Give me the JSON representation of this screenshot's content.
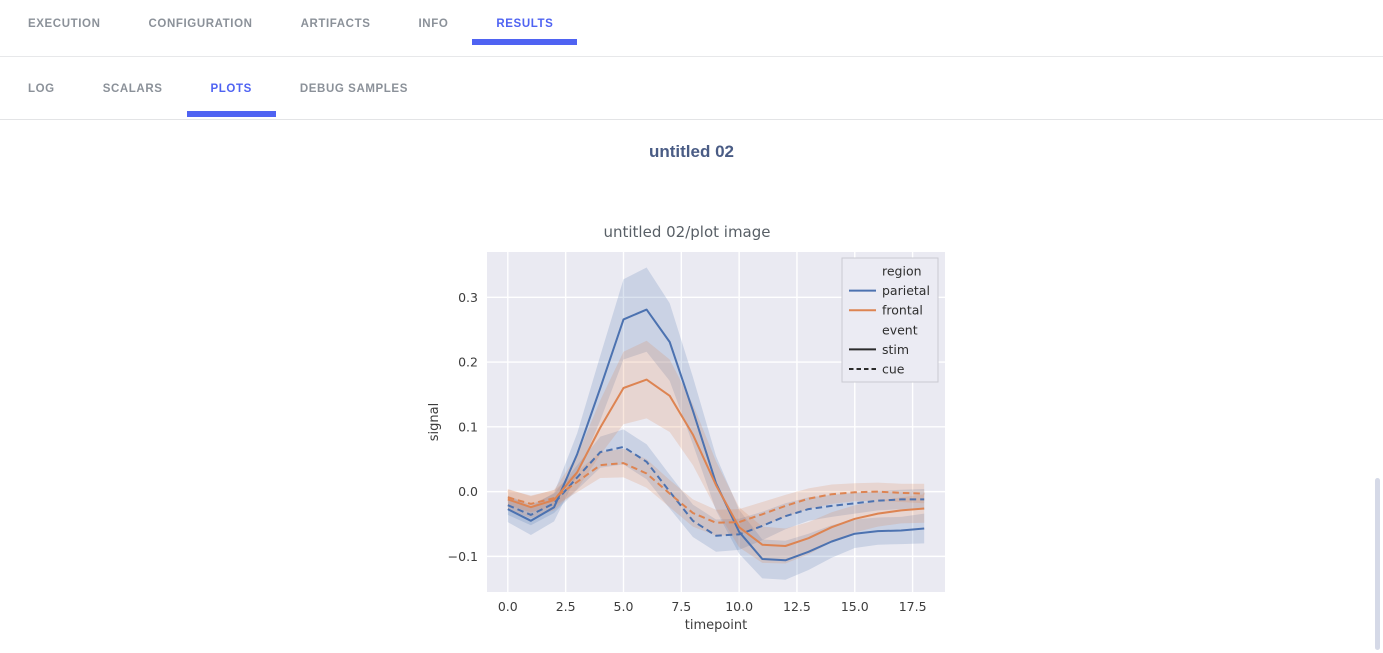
{
  "page": {
    "title": "untitled 02"
  },
  "primary_tabs": {
    "items": [
      {
        "label": "EXECUTION",
        "active": false
      },
      {
        "label": "CONFIGURATION",
        "active": false
      },
      {
        "label": "ARTIFACTS",
        "active": false
      },
      {
        "label": "INFO",
        "active": false
      },
      {
        "label": "RESULTS",
        "active": true
      }
    ]
  },
  "secondary_tabs": {
    "items": [
      {
        "label": "LOG",
        "active": false
      },
      {
        "label": "SCALARS",
        "active": false
      },
      {
        "label": "PLOTS",
        "active": true
      },
      {
        "label": "DEBUG SAMPLES",
        "active": false
      }
    ]
  },
  "colors": {
    "accent": "#4f63f2",
    "inactive_tab": "#8b9199",
    "page_title": "#4a5c85",
    "plot_title": "#585f66",
    "plot_background": "#eaeaf2",
    "grid": "#ffffff",
    "parietal": "#4c72b0",
    "frontal": "#dd8452",
    "legend_line_dark": "#2b2b2b",
    "tick_text": "#3d3d3d",
    "scrollbar": "#d5d9e7"
  },
  "chart_data": {
    "type": "line",
    "title": "untitled 02/plot image",
    "xlabel": "timepoint",
    "ylabel": "signal",
    "x": [
      0,
      1,
      2,
      3,
      4,
      5,
      6,
      7,
      8,
      9,
      10,
      11,
      12,
      13,
      14,
      15,
      16,
      17,
      18
    ],
    "xlim": [
      -0.9,
      18.9
    ],
    "ylim": [
      -0.155,
      0.37
    ],
    "xticks": [
      0,
      2.5,
      5,
      7.5,
      10,
      12.5,
      15,
      17.5
    ],
    "yticks": [
      -0.1,
      0,
      0.1,
      0.2,
      0.3
    ],
    "grid": true,
    "background": "#eaeaf2",
    "legend": {
      "position": "upper-right",
      "entries": [
        {
          "label": "region",
          "type": "header"
        },
        {
          "label": "parietal",
          "type": "line",
          "color": "#4c72b0",
          "dash": "solid"
        },
        {
          "label": "frontal",
          "type": "line",
          "color": "#dd8452",
          "dash": "solid"
        },
        {
          "label": "event",
          "type": "header"
        },
        {
          "label": "stim",
          "type": "line",
          "color": "#2b2b2b",
          "dash": "solid"
        },
        {
          "label": "cue",
          "type": "line",
          "color": "#2b2b2b",
          "dash": "dashed"
        }
      ]
    },
    "series": [
      {
        "name": "parietal-stim",
        "region": "parietal",
        "event": "stim",
        "color": "#4c72b0",
        "dash": "solid",
        "values": [
          -0.027,
          -0.045,
          -0.024,
          0.058,
          0.16,
          0.266,
          0.281,
          0.231,
          0.125,
          0.013,
          -0.062,
          -0.104,
          -0.106,
          -0.093,
          -0.077,
          -0.065,
          -0.061,
          -0.06,
          -0.057
        ],
        "ci": [
          0.02,
          0.022,
          0.022,
          0.032,
          0.05,
          0.062,
          0.065,
          0.06,
          0.052,
          0.042,
          0.034,
          0.03,
          0.03,
          0.028,
          0.025,
          0.022,
          0.021,
          0.021,
          0.023
        ]
      },
      {
        "name": "parietal-cue",
        "region": "parietal",
        "event": "cue",
        "color": "#4c72b0",
        "dash": "dashed",
        "values": [
          -0.021,
          -0.036,
          -0.018,
          0.022,
          0.061,
          0.069,
          0.046,
          0.0,
          -0.045,
          -0.068,
          -0.066,
          -0.053,
          -0.038,
          -0.027,
          -0.022,
          -0.018,
          -0.014,
          -0.012,
          -0.012
        ],
        "ci": [
          0.015,
          0.016,
          0.015,
          0.019,
          0.024,
          0.027,
          0.027,
          0.026,
          0.025,
          0.025,
          0.024,
          0.022,
          0.02,
          0.018,
          0.017,
          0.016,
          0.015,
          0.015,
          0.016
        ]
      },
      {
        "name": "frontal-stim",
        "region": "frontal",
        "event": "stim",
        "color": "#dd8452",
        "dash": "solid",
        "values": [
          -0.012,
          -0.024,
          -0.013,
          0.03,
          0.099,
          0.16,
          0.173,
          0.148,
          0.088,
          0.01,
          -0.055,
          -0.082,
          -0.084,
          -0.072,
          -0.055,
          -0.042,
          -0.034,
          -0.029,
          -0.026
        ],
        "ci": [
          0.016,
          0.017,
          0.016,
          0.026,
          0.042,
          0.056,
          0.06,
          0.056,
          0.047,
          0.037,
          0.031,
          0.028,
          0.027,
          0.025,
          0.023,
          0.021,
          0.02,
          0.02,
          0.022
        ]
      },
      {
        "name": "frontal-cue",
        "region": "frontal",
        "event": "cue",
        "color": "#dd8452",
        "dash": "dashed",
        "values": [
          -0.009,
          -0.019,
          -0.01,
          0.015,
          0.041,
          0.044,
          0.028,
          -0.003,
          -0.033,
          -0.048,
          -0.047,
          -0.035,
          -0.022,
          -0.011,
          -0.004,
          -0.001,
          0.0,
          -0.002,
          -0.003
        ],
        "ci": [
          0.012,
          0.013,
          0.012,
          0.016,
          0.02,
          0.022,
          0.022,
          0.021,
          0.021,
          0.02,
          0.02,
          0.019,
          0.017,
          0.016,
          0.015,
          0.014,
          0.014,
          0.014,
          0.015
        ]
      }
    ]
  }
}
